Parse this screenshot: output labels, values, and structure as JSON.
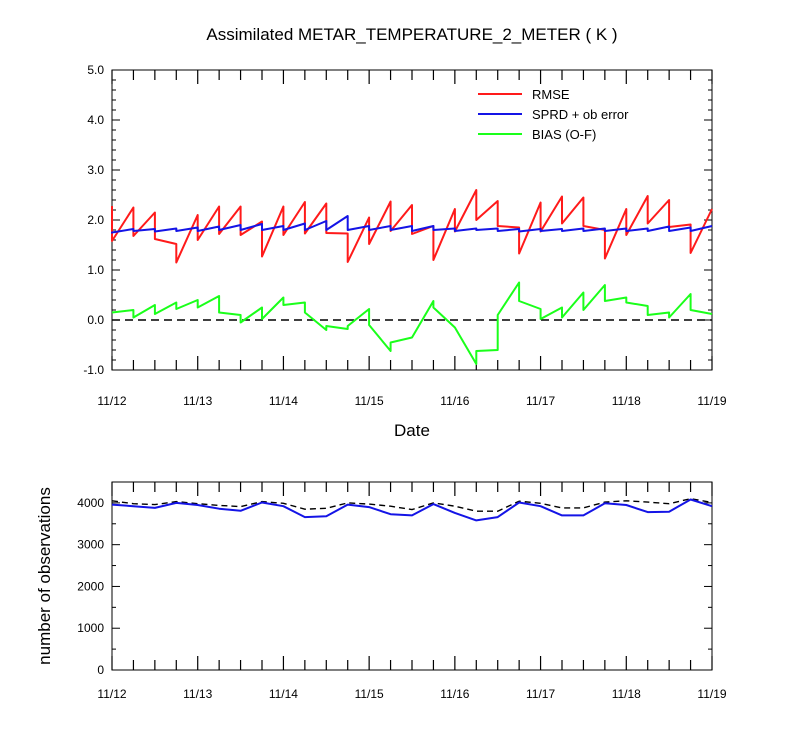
{
  "chart_data": [
    {
      "type": "line",
      "title": "Assimilated METAR_TEMPERATURE_2_METER ( K )",
      "xlabel": "Date",
      "ylabel": "",
      "xlim": [
        0,
        7
      ],
      "ylim": [
        -1.0,
        5.0
      ],
      "x_tick_labels": [
        "11/12",
        "11/13",
        "11/14",
        "11/15",
        "11/16",
        "11/17",
        "11/18",
        "11/19"
      ],
      "y_tick_labels": [
        "5.0",
        "4.0",
        "3.0",
        "2.0",
        "1.0",
        "0.0",
        "-1.0"
      ],
      "y_ticks": [
        5,
        4,
        3,
        2,
        1,
        0,
        -1
      ],
      "zero_line": "dashed",
      "legend_position": "top-right",
      "series": [
        {
          "name": "RMSE",
          "color": "#ff1a1a",
          "points": [
            [
              0,
              2.28
            ],
            [
              0,
              1.58
            ],
            [
              0.25,
              2.25
            ],
            [
              0.25,
              1.68
            ],
            [
              0.5,
              2.15
            ],
            [
              0.5,
              1.62
            ],
            [
              0.75,
              1.52
            ],
            [
              0.75,
              1.15
            ],
            [
              1,
              2.1
            ],
            [
              1,
              1.6
            ],
            [
              1.25,
              2.27
            ],
            [
              1.25,
              1.72
            ],
            [
              1.5,
              2.27
            ],
            [
              1.5,
              1.7
            ],
            [
              1.75,
              1.97
            ],
            [
              1.75,
              1.27
            ],
            [
              2,
              2.27
            ],
            [
              2,
              1.7
            ],
            [
              2.25,
              2.36
            ],
            [
              2.25,
              1.73
            ],
            [
              2.5,
              2.33
            ],
            [
              2.5,
              1.74
            ],
            [
              2.75,
              1.73
            ],
            [
              2.75,
              1.16
            ],
            [
              3,
              2.05
            ],
            [
              3,
              1.52
            ],
            [
              3.25,
              2.37
            ],
            [
              3.25,
              1.78
            ],
            [
              3.5,
              2.3
            ],
            [
              3.5,
              1.72
            ],
            [
              3.75,
              1.88
            ],
            [
              3.75,
              1.2
            ],
            [
              4,
              2.22
            ],
            [
              4,
              1.77
            ],
            [
              4.25,
              2.6
            ],
            [
              4.25,
              2.0
            ],
            [
              4.5,
              2.38
            ],
            [
              4.5,
              1.88
            ],
            [
              4.75,
              1.85
            ],
            [
              4.75,
              1.33
            ],
            [
              5,
              2.35
            ],
            [
              5,
              1.77
            ],
            [
              5.25,
              2.47
            ],
            [
              5.25,
              1.93
            ],
            [
              5.5,
              2.45
            ],
            [
              5.5,
              1.88
            ],
            [
              5.75,
              1.8
            ],
            [
              5.75,
              1.23
            ],
            [
              6,
              2.22
            ],
            [
              6,
              1.7
            ],
            [
              6.25,
              2.48
            ],
            [
              6.25,
              1.93
            ],
            [
              6.5,
              2.4
            ],
            [
              6.5,
              1.86
            ],
            [
              6.75,
              1.91
            ],
            [
              6.75,
              1.34
            ],
            [
              7,
              2.22
            ]
          ]
        },
        {
          "name": "SPRD + ob error",
          "color": "#1414e6",
          "points": [
            [
              0,
              1.73
            ],
            [
              0,
              1.75
            ],
            [
              0.25,
              1.82
            ],
            [
              0.25,
              1.78
            ],
            [
              0.5,
              1.82
            ],
            [
              0.5,
              1.77
            ],
            [
              0.75,
              1.83
            ],
            [
              0.75,
              1.78
            ],
            [
              1,
              1.85
            ],
            [
              1,
              1.78
            ],
            [
              1.25,
              1.87
            ],
            [
              1.25,
              1.8
            ],
            [
              1.5,
              1.9
            ],
            [
              1.5,
              1.8
            ],
            [
              1.75,
              1.92
            ],
            [
              1.75,
              1.8
            ],
            [
              2,
              1.88
            ],
            [
              2,
              1.8
            ],
            [
              2.25,
              1.93
            ],
            [
              2.25,
              1.8
            ],
            [
              2.5,
              1.98
            ],
            [
              2.5,
              1.8
            ],
            [
              2.75,
              2.08
            ],
            [
              2.75,
              1.8
            ],
            [
              3,
              1.88
            ],
            [
              3,
              1.8
            ],
            [
              3.25,
              1.88
            ],
            [
              3.25,
              1.8
            ],
            [
              3.5,
              1.88
            ],
            [
              3.5,
              1.78
            ],
            [
              3.75,
              1.88
            ],
            [
              3.75,
              1.8
            ],
            [
              4,
              1.83
            ],
            [
              4,
              1.78
            ],
            [
              4.25,
              1.83
            ],
            [
              4.25,
              1.8
            ],
            [
              4.5,
              1.83
            ],
            [
              4.5,
              1.78
            ],
            [
              4.75,
              1.82
            ],
            [
              4.75,
              1.77
            ],
            [
              5,
              1.82
            ],
            [
              5,
              1.78
            ],
            [
              5.25,
              1.82
            ],
            [
              5.25,
              1.78
            ],
            [
              5.5,
              1.83
            ],
            [
              5.5,
              1.78
            ],
            [
              5.75,
              1.83
            ],
            [
              5.75,
              1.78
            ],
            [
              6,
              1.83
            ],
            [
              6,
              1.78
            ],
            [
              6.25,
              1.83
            ],
            [
              6.25,
              1.78
            ],
            [
              6.5,
              1.87
            ],
            [
              6.5,
              1.78
            ],
            [
              6.75,
              1.85
            ],
            [
              6.75,
              1.78
            ],
            [
              7,
              1.88
            ]
          ]
        },
        {
          "name": "BIAS (O-F)",
          "color": "#1aff1a",
          "points": [
            [
              0,
              0.15
            ],
            [
              0.25,
              0.2
            ],
            [
              0.25,
              0.05
            ],
            [
              0.5,
              0.3
            ],
            [
              0.5,
              0.12
            ],
            [
              0.75,
              0.35
            ],
            [
              0.75,
              0.22
            ],
            [
              1,
              0.4
            ],
            [
              1,
              0.25
            ],
            [
              1.25,
              0.48
            ],
            [
              1.25,
              0.15
            ],
            [
              1.5,
              0.1
            ],
            [
              1.5,
              -0.05
            ],
            [
              1.75,
              0.25
            ],
            [
              1.75,
              0.02
            ],
            [
              2,
              0.45
            ],
            [
              2,
              0.3
            ],
            [
              2.25,
              0.35
            ],
            [
              2.25,
              0.15
            ],
            [
              2.5,
              -0.2
            ],
            [
              2.5,
              -0.12
            ],
            [
              2.75,
              -0.18
            ],
            [
              2.75,
              -0.12
            ],
            [
              3,
              0.22
            ],
            [
              3,
              -0.1
            ],
            [
              3.25,
              -0.62
            ],
            [
              3.25,
              -0.45
            ],
            [
              3.5,
              -0.35
            ],
            [
              3.5,
              -0.35
            ],
            [
              3.75,
              0.38
            ],
            [
              3.75,
              0.25
            ],
            [
              4,
              -0.15
            ],
            [
              4,
              -0.15
            ],
            [
              4.25,
              -0.88
            ],
            [
              4.25,
              -0.62
            ],
            [
              4.5,
              -0.6
            ],
            [
              4.5,
              0.1
            ],
            [
              4.75,
              0.75
            ],
            [
              4.75,
              0.38
            ],
            [
              5,
              0.22
            ],
            [
              5,
              0.02
            ],
            [
              5.25,
              0.25
            ],
            [
              5.25,
              0.05
            ],
            [
              5.5,
              0.55
            ],
            [
              5.5,
              0.2
            ],
            [
              5.75,
              0.7
            ],
            [
              5.75,
              0.38
            ],
            [
              6,
              0.45
            ],
            [
              6,
              0.35
            ],
            [
              6.25,
              0.28
            ],
            [
              6.25,
              0.1
            ],
            [
              6.5,
              0.15
            ],
            [
              6.5,
              0.05
            ],
            [
              6.75,
              0.52
            ],
            [
              6.75,
              0.2
            ],
            [
              7,
              0.12
            ]
          ]
        }
      ]
    },
    {
      "type": "line",
      "title": "",
      "xlabel": "",
      "ylabel": "number of observations",
      "xlim": [
        0,
        7
      ],
      "ylim": [
        0,
        4500
      ],
      "x_tick_labels": [
        "11/12",
        "11/13",
        "11/14",
        "11/15",
        "11/16",
        "11/17",
        "11/18",
        "11/19"
      ],
      "y_tick_labels": [
        "4000",
        "3000",
        "2000",
        "1000",
        "0"
      ],
      "y_ticks": [
        4000,
        3000,
        2000,
        1000,
        0
      ],
      "series": [
        {
          "name": "",
          "style": "dashed",
          "color": "#000000",
          "x": [
            0,
            0.25,
            0.5,
            0.75,
            1,
            1.25,
            1.5,
            1.75,
            2,
            2.25,
            2.5,
            2.75,
            3,
            3.25,
            3.5,
            3.75,
            4,
            4.25,
            4.5,
            4.75,
            5,
            5.25,
            5.5,
            5.75,
            6,
            6.25,
            6.5,
            6.75,
            7
          ],
          "values": [
            4050,
            3980,
            3960,
            4030,
            3980,
            3940,
            3910,
            4030,
            3990,
            3850,
            3870,
            4000,
            3970,
            3920,
            3840,
            4000,
            3920,
            3800,
            3800,
            4040,
            3990,
            3880,
            3880,
            4020,
            4050,
            4020,
            3980,
            4100,
            4010
          ]
        },
        {
          "name": "",
          "style": "solid",
          "color": "#1414e6",
          "x": [
            0,
            0.25,
            0.5,
            0.75,
            1,
            1.25,
            1.5,
            1.75,
            2,
            2.25,
            2.5,
            2.75,
            3,
            3.25,
            3.5,
            3.75,
            4,
            4.25,
            4.5,
            4.75,
            5,
            5.25,
            5.5,
            5.75,
            6,
            6.25,
            6.5,
            6.75,
            7
          ],
          "values": [
            3960,
            3920,
            3880,
            4000,
            3950,
            3860,
            3810,
            4010,
            3920,
            3660,
            3680,
            3960,
            3900,
            3730,
            3700,
            3970,
            3760,
            3580,
            3660,
            4010,
            3920,
            3700,
            3700,
            3990,
            3950,
            3780,
            3790,
            4080,
            3920
          ]
        }
      ]
    }
  ]
}
